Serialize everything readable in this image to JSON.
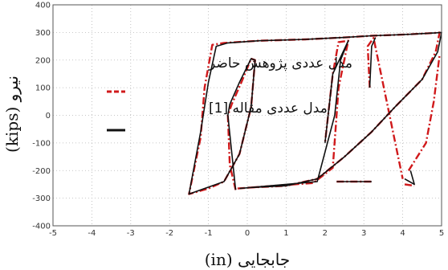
{
  "chart_data": {
    "type": "line",
    "xlabel": "جابجایی (in)",
    "ylabel": "نیرو (kips)",
    "xlim": [
      -5,
      5
    ],
    "ylim": [
      -400,
      400
    ],
    "x_ticks": [
      -5,
      -4,
      -3,
      -2,
      -1,
      0,
      1,
      2,
      3,
      4,
      5
    ],
    "y_ticks": [
      -400,
      -300,
      -200,
      -100,
      0,
      100,
      200,
      300,
      400
    ],
    "grid": true,
    "legend_position": "upper-left",
    "series": [
      {
        "name": "مدل عددی پژوهش حاضر",
        "color": "#d0191b",
        "style": "dashed",
        "x": [
          -0.3,
          -0.45,
          -0.5,
          -0.4,
          -0.15,
          0.1,
          0.2,
          0.1,
          -0.2,
          -0.6,
          -1.0,
          -1.5,
          -1.5,
          -1.2,
          -1.1,
          -0.9,
          -0.6,
          0.3,
          1.5,
          2.5,
          3.2,
          4.0,
          4.8,
          4.95,
          4.85,
          4.5,
          3.8,
          3.2,
          2.5,
          1.8,
          1.0,
          0.0,
          -0.25,
          1.7,
          2.2,
          2.35,
          2.6,
          2.35,
          2.2,
          2.0,
          2.3,
          3.2,
          3.15,
          3.1,
          3.25,
          4.0,
          4.05,
          4.3,
          4.15,
          4.6,
          4.8,
          4.95
        ],
        "y": [
          -270,
          -180,
          0,
          40,
          120,
          205,
          200,
          30,
          -140,
          -240,
          -265,
          -285,
          -285,
          -80,
          100,
          255,
          262,
          270,
          275,
          282,
          288,
          292,
          298,
          300,
          230,
          130,
          30,
          -60,
          -150,
          -230,
          -255,
          -262,
          -265,
          -245,
          -190,
          100,
          270,
          265,
          150,
          -100,
          -240,
          -240,
          100,
          250,
          280,
          -230,
          -250,
          -255,
          -200,
          -100,
          50,
          220
        ],
        "segment_breaks": [
          32,
          40,
          42,
          46,
          48
        ]
      },
      {
        "name": "مدل عددی مقاله [1]",
        "color": "#111111",
        "style": "solid",
        "x": [
          -0.3,
          -0.5,
          -0.45,
          -0.2,
          0.1,
          0.2,
          0.1,
          -0.2,
          -0.6,
          -1.5,
          -1.5,
          -1.2,
          -1.0,
          -0.8,
          -0.5,
          0.3,
          1.5,
          2.5,
          3.2,
          4.0,
          4.8,
          5.0,
          4.9,
          4.5,
          3.8,
          3.2,
          2.5,
          1.8,
          1.0,
          0.0,
          -0.2,
          1.8,
          2.25,
          2.4,
          2.6,
          2.2,
          2.0,
          2.3,
          3.2,
          3.15,
          3.2,
          3.3,
          4.05,
          4.3,
          4.2
        ],
        "y": [
          -270,
          0,
          40,
          120,
          205,
          200,
          30,
          -140,
          -240,
          -285,
          -285,
          -60,
          120,
          250,
          262,
          270,
          275,
          282,
          288,
          292,
          298,
          300,
          230,
          130,
          30,
          -60,
          -150,
          -230,
          -255,
          -262,
          -265,
          -240,
          0,
          200,
          270,
          150,
          -100,
          -240,
          -240,
          100,
          250,
          282,
          -230,
          -250,
          -200
        ],
        "segment_breaks": [
          30,
          37,
          39,
          42
        ]
      }
    ]
  }
}
